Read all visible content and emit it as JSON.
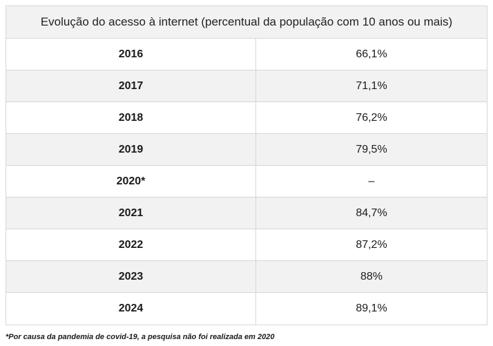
{
  "chart_data": {
    "type": "table",
    "title": "Evolução do acesso à internet (percentual da população com 10 anos ou mais)",
    "rows": [
      {
        "year": "2016",
        "value": "66,1%"
      },
      {
        "year": "2017",
        "value": "71,1%"
      },
      {
        "year": "2018",
        "value": "76,2%"
      },
      {
        "year": "2019",
        "value": "79,5%"
      },
      {
        "year": "2020*",
        "value": "–"
      },
      {
        "year": "2021",
        "value": "84,7%"
      },
      {
        "year": "2022",
        "value": "87,2%"
      },
      {
        "year": "2023",
        "value": "88%"
      },
      {
        "year": "2024",
        "value": "89,1%"
      }
    ],
    "footnote": "*Por causa da pandemia de covid-19, a pesquisa não foi realizada em 2020"
  }
}
